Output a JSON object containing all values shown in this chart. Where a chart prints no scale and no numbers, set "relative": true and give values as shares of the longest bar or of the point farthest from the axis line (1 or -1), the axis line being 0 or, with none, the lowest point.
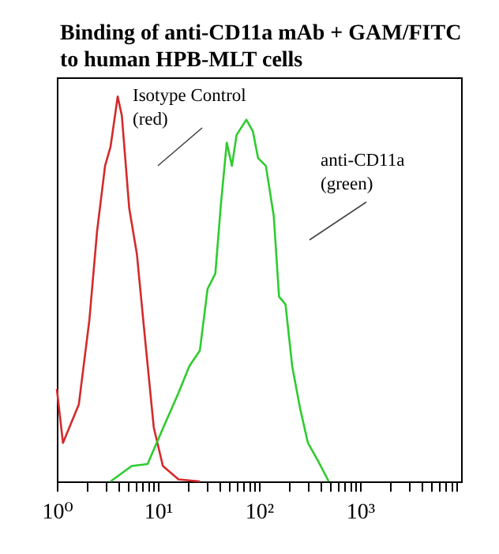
{
  "chart_data": {
    "type": "line",
    "title": "Binding of anti-CD11a mAb + GAM/FITC\nto human HPB-MLT cells",
    "relative": true,
    "log": "x",
    "grid": false,
    "legend": false,
    "marker": "none",
    "line_style": "solid",
    "xlim": [
      1,
      10000
    ],
    "xticks": [
      {
        "value": 1,
        "label": "10⁰"
      },
      {
        "value": 2,
        "label": null
      },
      {
        "value": 3,
        "label": null
      },
      {
        "value": 4,
        "label": null
      },
      {
        "value": 5,
        "label": null
      },
      {
        "value": 6,
        "label": null
      },
      {
        "value": 7,
        "label": null
      },
      {
        "value": 8,
        "label": null
      },
      {
        "value": 9,
        "label": null
      },
      {
        "value": 10,
        "label": "10¹"
      },
      {
        "value": 20,
        "label": null
      },
      {
        "value": 30,
        "label": null
      },
      {
        "value": 40,
        "label": null
      },
      {
        "value": 50,
        "label": null
      },
      {
        "value": 60,
        "label": null
      },
      {
        "value": 70,
        "label": null
      },
      {
        "value": 80,
        "label": null
      },
      {
        "value": 90,
        "label": null
      },
      {
        "value": 100,
        "label": "10²"
      },
      {
        "value": 200,
        "label": null
      },
      {
        "value": 300,
        "label": null
      },
      {
        "value": 400,
        "label": null
      },
      {
        "value": 500,
        "label": null
      },
      {
        "value": 600,
        "label": null
      },
      {
        "value": 700,
        "label": null
      },
      {
        "value": 800,
        "label": null
      },
      {
        "value": 900,
        "label": null
      },
      {
        "value": 1000,
        "label": "10³"
      },
      {
        "value": 2000,
        "label": null
      },
      {
        "value": 3000,
        "label": null
      },
      {
        "value": 4000,
        "label": null
      },
      {
        "value": 5000,
        "label": null
      },
      {
        "value": 6000,
        "label": null
      },
      {
        "value": 7000,
        "label": null
      },
      {
        "value": 8000,
        "label": null
      },
      {
        "value": 9000,
        "label": null
      }
    ],
    "series": [
      {
        "color": "#d42a2a",
        "x": [
          1,
          1.15,
          1.65,
          2.1,
          2.5,
          3.0,
          3.4,
          4.0,
          4.4,
          5.2,
          6.2,
          7.4,
          9.1,
          11.2,
          16,
          26
        ],
        "values": [
          0.24,
          0.1,
          0.2,
          0.42,
          0.65,
          0.82,
          0.87,
          1.0,
          0.95,
          0.71,
          0.59,
          0.38,
          0.14,
          0.04,
          0.005,
          0
        ]
      },
      {
        "color": "#2ecc2e",
        "x": [
          3.4,
          5.5,
          7.9,
          11.3,
          16,
          20.5,
          26,
          31,
          37,
          42,
          48,
          54,
          60,
          75,
          87,
          98,
          117,
          140,
          158,
          183,
          213,
          255,
          305,
          390,
          490
        ],
        "values": [
          0,
          0.04,
          0.045,
          0.14,
          0.23,
          0.3,
          0.34,
          0.5,
          0.54,
          0.72,
          0.88,
          0.82,
          0.9,
          0.94,
          0.91,
          0.84,
          0.82,
          0.69,
          0.48,
          0.46,
          0.3,
          0.19,
          0.1,
          0.05,
          0
        ]
      }
    ],
    "annotations": [
      "Isotype Control\n(red)",
      "anti-CD11a\n(green)"
    ]
  }
}
